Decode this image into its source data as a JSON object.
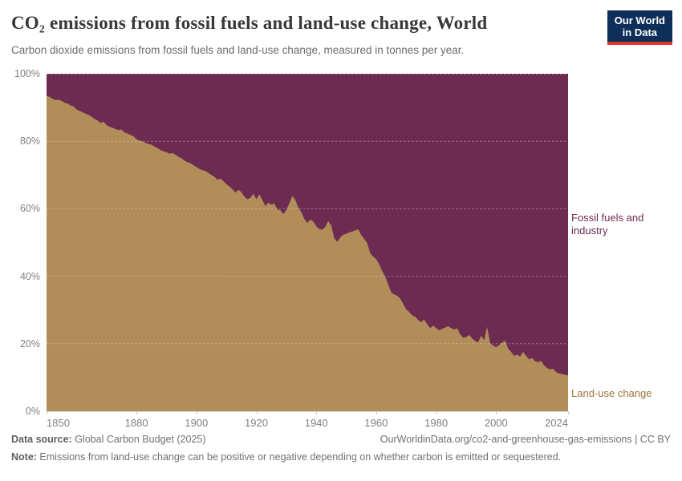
{
  "header": {
    "title": "CO₂ emissions from fossil fuels and land-use change, World",
    "subtitle": "Carbon dioxide emissions from fossil fuels and land-use change, measured in tonnes per year.",
    "logo": {
      "line1": "Our World",
      "line2": "in Data",
      "bg_color": "#0e2f5a",
      "accent_color": "#e0362c"
    }
  },
  "chart_data": {
    "type": "area",
    "variant": "stacked-100-percent-share",
    "title": "CO₂ emissions from fossil fuels and land-use change, World",
    "x_range": [
      1850,
      2024
    ],
    "y_range": [
      0,
      100
    ],
    "grid": "dashed-horizontal",
    "legend_position": "labels-at-right-edge",
    "y_ticks": [
      {
        "pct": 0,
        "label": "0%"
      },
      {
        "pct": 20,
        "label": "20%"
      },
      {
        "pct": 40,
        "label": "40%"
      },
      {
        "pct": 60,
        "label": "60%"
      },
      {
        "pct": 80,
        "label": "80%"
      },
      {
        "pct": 100,
        "label": "100%"
      }
    ],
    "y_gridlines_pct": [
      20,
      40,
      60,
      80,
      100
    ],
    "x_ticks": [
      {
        "year": 1850,
        "label": "1850",
        "anchor": "start"
      },
      {
        "year": 1880,
        "label": "1880",
        "anchor": "middle"
      },
      {
        "year": 1900,
        "label": "1900",
        "anchor": "middle"
      },
      {
        "year": 1920,
        "label": "1920",
        "anchor": "middle"
      },
      {
        "year": 1940,
        "label": "1940",
        "anchor": "middle"
      },
      {
        "year": 1960,
        "label": "1960",
        "anchor": "middle"
      },
      {
        "year": 1980,
        "label": "1980",
        "anchor": "middle"
      },
      {
        "year": 2000,
        "label": "2000",
        "anchor": "middle"
      },
      {
        "year": 2024,
        "label": "2024",
        "anchor": "end"
      }
    ],
    "series": [
      {
        "name": "Fossil fuels and industry",
        "position": "top",
        "color": "#6e2b52",
        "label_color": "#6e2b52",
        "values": "100 minus land-use share at every year (stacked to 100%)"
      },
      {
        "name": "Land-use change",
        "position": "bottom",
        "color": "#b18d5a",
        "label_color": "#9c7339",
        "year_start": 1850,
        "year_step": 1,
        "share_pct": [
          93.5,
          93.1,
          92.6,
          92.2,
          92.3,
          92.0,
          91.4,
          91.2,
          90.6,
          90.3,
          89.4,
          89.0,
          88.6,
          88.2,
          87.8,
          87.3,
          86.6,
          86.2,
          85.4,
          85.8,
          84.8,
          84.3,
          84.0,
          83.6,
          83.3,
          83.5,
          82.6,
          82.3,
          81.9,
          81.5,
          80.6,
          80.2,
          80.0,
          79.5,
          79.2,
          79.0,
          78.4,
          78.0,
          77.4,
          77.0,
          76.8,
          76.3,
          76.5,
          76.0,
          75.4,
          75.0,
          74.3,
          73.8,
          73.5,
          72.9,
          72.4,
          71.8,
          71.4,
          71.2,
          70.6,
          70.0,
          69.5,
          68.6,
          68.9,
          68.2,
          67.3,
          66.6,
          65.8,
          64.8,
          65.6,
          64.9,
          63.6,
          62.8,
          63.2,
          64.5,
          62.8,
          64.3,
          62.6,
          60.8,
          61.8,
          61.2,
          61.6,
          59.8,
          59.6,
          58.4,
          59.6,
          61.6,
          63.8,
          62.6,
          60.4,
          59.0,
          57.0,
          55.8,
          56.8,
          56.2,
          54.8,
          54.0,
          53.8,
          54.6,
          56.4,
          55.0,
          51.2,
          50.2,
          51.5,
          52.3,
          52.6,
          53.0,
          53.2,
          53.6,
          53.9,
          52.2,
          51.0,
          49.8,
          46.8,
          45.8,
          45.1,
          43.5,
          41.5,
          39.9,
          37.5,
          35.2,
          34.6,
          34.2,
          33.4,
          31.8,
          30.2,
          29.4,
          28.4,
          28.0,
          27.0,
          26.4,
          27.2,
          25.8,
          24.6,
          25.4,
          24.6,
          24.0,
          24.4,
          24.8,
          25.2,
          24.6,
          24.2,
          24.6,
          22.8,
          21.8,
          22.0,
          22.6,
          21.6,
          20.8,
          20.4,
          22.4,
          21.0,
          25.0,
          20.2,
          19.4,
          19.0,
          19.6,
          20.4,
          20.9,
          18.6,
          17.6,
          16.4,
          16.8,
          16.2,
          17.6,
          16.4,
          15.4,
          15.8,
          14.8,
          14.6,
          14.9,
          13.6,
          12.8,
          12.4,
          12.6,
          11.6,
          11.2,
          11.0,
          10.8,
          10.6
        ]
      }
    ]
  },
  "footer": {
    "datasource_label": "Data source:",
    "datasource_value": " Global Carbon Budget (2025)",
    "url_text": "OurWorldinData.org/co2-and-greenhouse-gas-emissions | CC BY",
    "note_label": "Note:",
    "note_value": " Emissions from land-use change can be positive or negative depending on whether carbon is emitted or sequestered."
  }
}
